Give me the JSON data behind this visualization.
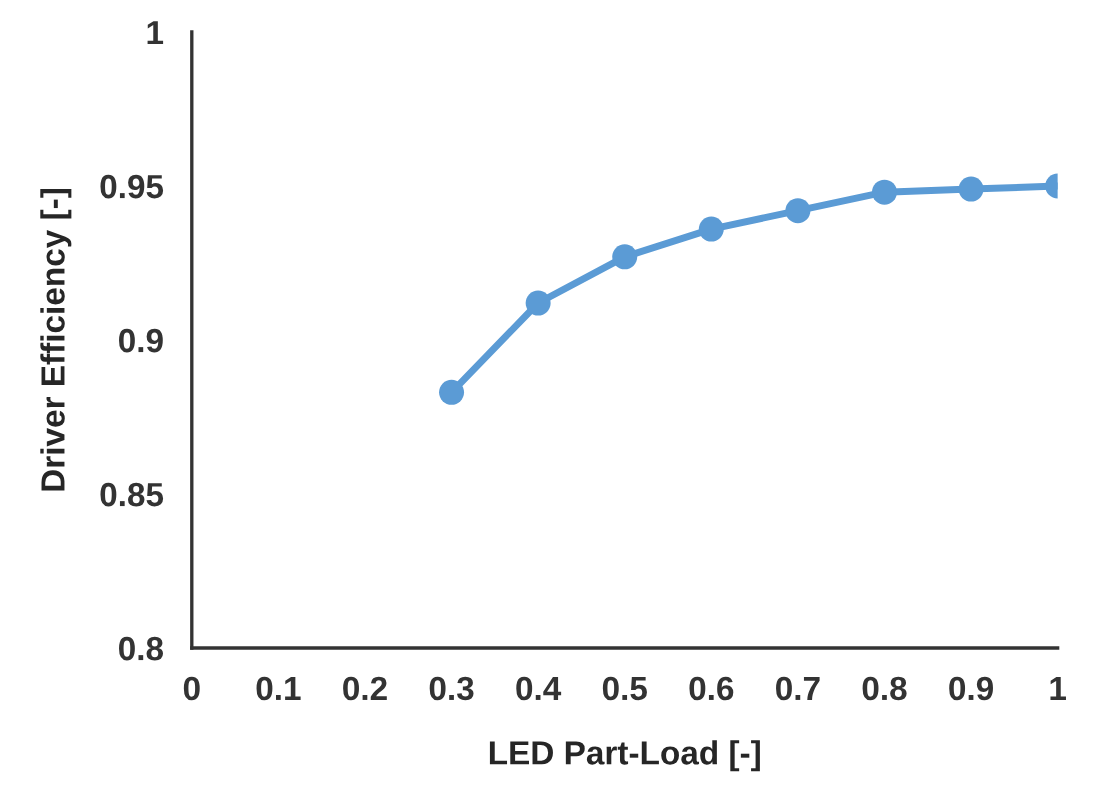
{
  "chart_data": {
    "type": "line",
    "xlabel": "LED Part-Load [-]",
    "ylabel": "Driver Efficiency [-]",
    "x": [
      0.3,
      0.4,
      0.5,
      0.6,
      0.7,
      0.8,
      0.9,
      1.0
    ],
    "series": [
      {
        "color": "#5b9bd5",
        "values": [
          0.883,
          0.912,
          0.927,
          0.936,
          0.942,
          0.948,
          0.949,
          0.95
        ]
      }
    ],
    "xlim": [
      0,
      1
    ],
    "xticks": [
      0,
      {
        "value": 0.1,
        "label": "0.1"
      },
      {
        "value": 0.2,
        "label": "0.2"
      },
      {
        "value": 0.3,
        "label": "0.3"
      },
      {
        "value": 0.4,
        "label": "0.4"
      },
      {
        "value": 0.5,
        "label": "0.5"
      },
      {
        "value": 0.6,
        "label": "0.6"
      },
      {
        "value": 0.7,
        "label": "0.7"
      },
      {
        "value": 0.8,
        "label": "0.8"
      },
      {
        "value": 0.9,
        "label": "0.9"
      },
      1
    ],
    "ylim": [
      0.8,
      1
    ],
    "yticks": [
      0.8,
      0.85,
      0.9,
      0.95,
      1
    ],
    "grid": false,
    "marker": "circle",
    "line_style": "solid"
  }
}
